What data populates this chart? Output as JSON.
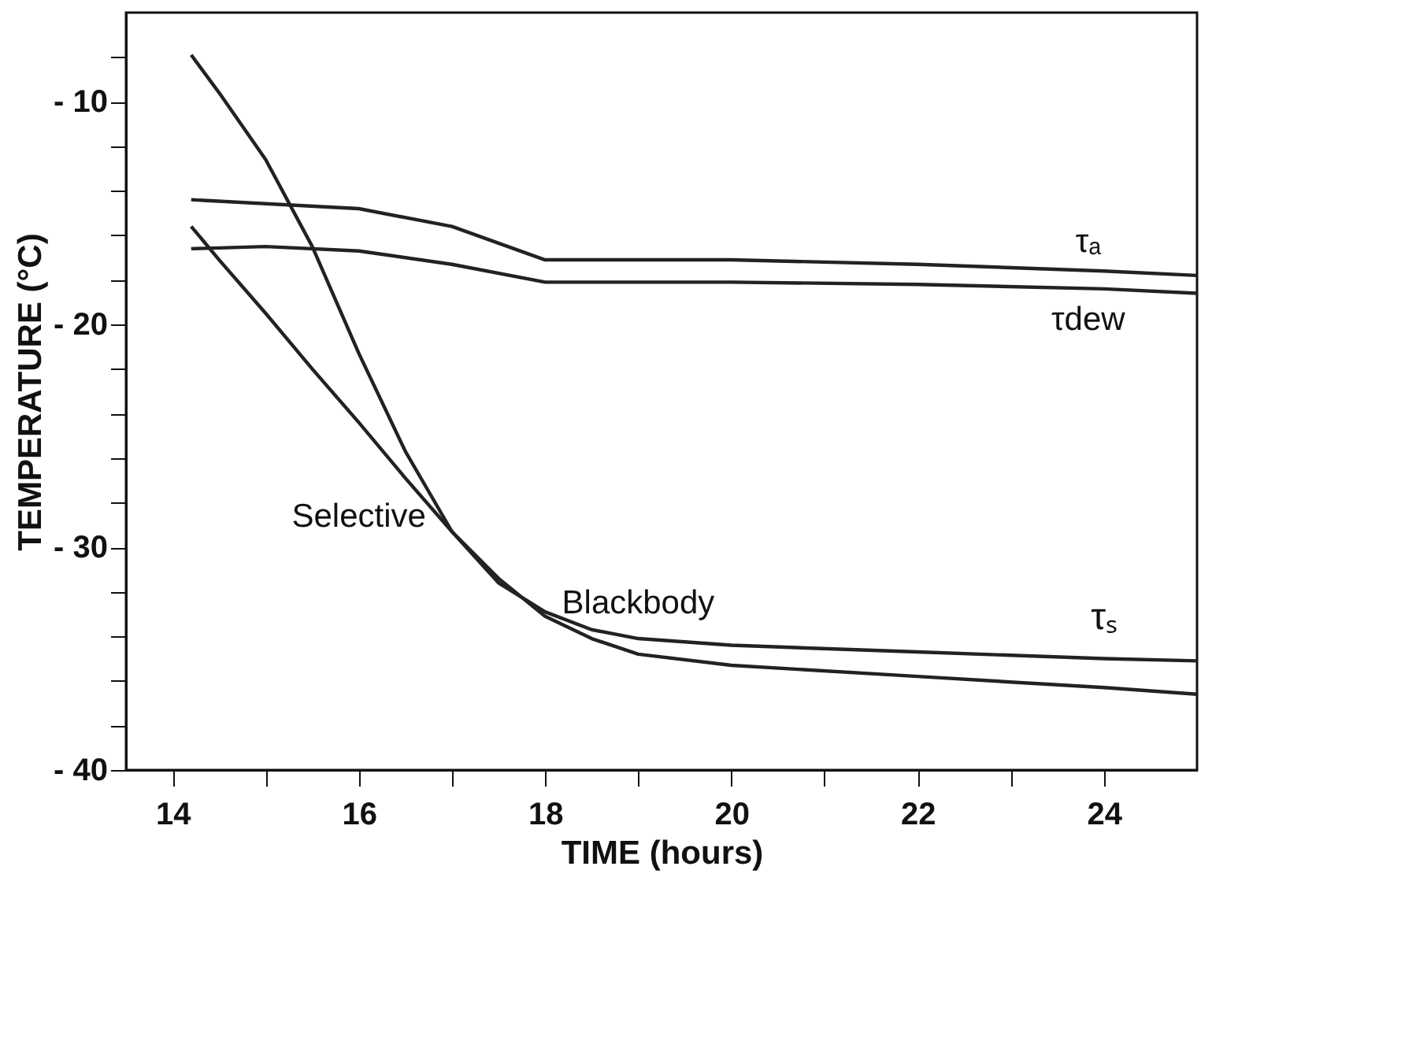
{
  "chart_data": {
    "type": "line",
    "xlabel": "TIME (hours)",
    "ylabel": "TEMPERATURE (°C)",
    "xlim": [
      13.5,
      25
    ],
    "ylim": [
      -40,
      -6
    ],
    "xticks": [
      14,
      {
        "value": 15,
        "label": null
      },
      16,
      {
        "value": 17,
        "label": null
      },
      18,
      {
        "value": 19,
        "label": null
      },
      20,
      {
        "value": 21,
        "label": null
      },
      22,
      {
        "value": 23,
        "label": null
      },
      24
    ],
    "yticks": [
      {
        "value": -40,
        "label": "- 40"
      },
      {
        "value": -38,
        "label": null
      },
      {
        "value": -36,
        "label": null
      },
      {
        "value": -34,
        "label": null
      },
      {
        "value": -32,
        "label": null
      },
      {
        "value": -30,
        "label": "- 30"
      },
      {
        "value": -28,
        "label": null
      },
      {
        "value": -26,
        "label": null
      },
      {
        "value": -24,
        "label": null
      },
      {
        "value": -22,
        "label": null
      },
      {
        "value": -20,
        "label": "- 20"
      },
      {
        "value": -18,
        "label": null
      },
      {
        "value": -16,
        "label": null
      },
      {
        "value": -14,
        "label": null
      },
      {
        "value": -12,
        "label": null
      },
      {
        "value": -10,
        "label": "- 10"
      },
      {
        "value": -8,
        "label": null
      }
    ],
    "grid": false,
    "marker": "none",
    "line_style": "solid",
    "series": [
      {
        "name": "τₐ",
        "color": "#222222",
        "x": [
          14.2,
          16,
          17,
          18,
          20,
          22,
          24,
          25
        ],
        "values": [
          -14.4,
          -14.8,
          -15.6,
          -17.1,
          -17.1,
          -17.3,
          -17.6,
          -17.8
        ]
      },
      {
        "name": "τdew",
        "color": "#222222",
        "x": [
          14.2,
          15,
          16,
          17,
          18,
          20,
          22,
          24,
          25
        ],
        "values": [
          -16.6,
          -16.5,
          -16.7,
          -17.3,
          -18.1,
          -18.1,
          -18.2,
          -18.4,
          -18.6
        ]
      },
      {
        "name": "Blackbody",
        "color": "#222222",
        "x": [
          14.2,
          14.5,
          15,
          15.5,
          16,
          16.5,
          17,
          17.5,
          18,
          18.5,
          19,
          20,
          22,
          24,
          25
        ],
        "values": [
          -7.9,
          -9.6,
          -12.6,
          -16.5,
          -21.3,
          -25.7,
          -29.3,
          -31.6,
          -32.9,
          -33.7,
          -34.1,
          -34.4,
          -34.7,
          -35.0,
          -35.1
        ]
      },
      {
        "name": "Selective",
        "color": "#222222",
        "x": [
          14.2,
          14.5,
          15,
          15.5,
          16,
          16.5,
          17,
          17.5,
          18,
          18.5,
          19,
          20,
          22,
          24,
          25
        ],
        "values": [
          -15.6,
          -17.1,
          -19.5,
          -22.0,
          -24.4,
          -26.9,
          -29.3,
          -31.4,
          -33.1,
          -34.1,
          -34.8,
          -35.3,
          -35.8,
          -36.3,
          -36.6
        ]
      }
    ],
    "annotations": [
      {
        "text": "τₛ",
        "x": 24,
        "y": -35.0
      }
    ]
  }
}
